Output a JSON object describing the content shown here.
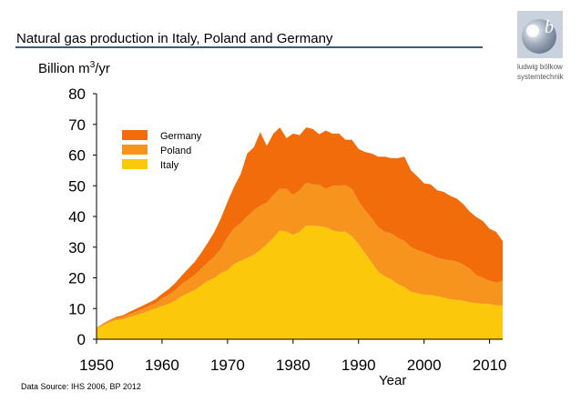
{
  "title": "Natural gas production in Italy, Poland and Germany",
  "source_note": "Data Source: IHS 2006, BP 2012",
  "logo": {
    "line1": "ludwig bölkow",
    "line2": "systemtechnik",
    "icon": "lbst-logo-icon"
  },
  "colors": {
    "Germany": "#f26c0c",
    "Poland": "#f7941d",
    "Italy": "#fcc80a",
    "title_rule": "#3f5a78"
  },
  "chart_data": {
    "type": "area",
    "stacked": true,
    "xlabel": "Year",
    "ylabel_prefix": "Billion m",
    "ylabel_sup": "3",
    "ylabel_suffix": "/yr",
    "xlim": [
      1950,
      2012
    ],
    "ylim": [
      0,
      80
    ],
    "x_ticks": [
      1950,
      1960,
      1970,
      1980,
      1990,
      2000,
      2010
    ],
    "y_ticks": [
      0,
      10,
      20,
      30,
      40,
      50,
      60,
      70,
      80
    ],
    "legend_position": "top-center",
    "x": [
      1950,
      1951,
      1952,
      1953,
      1954,
      1955,
      1956,
      1957,
      1958,
      1959,
      1960,
      1961,
      1962,
      1963,
      1964,
      1965,
      1966,
      1967,
      1968,
      1969,
      1970,
      1971,
      1972,
      1973,
      1974,
      1975,
      1976,
      1977,
      1978,
      1979,
      1980,
      1981,
      1982,
      1983,
      1984,
      1985,
      1986,
      1987,
      1988,
      1989,
      1990,
      1991,
      1992,
      1993,
      1994,
      1995,
      1996,
      1997,
      1998,
      1999,
      2000,
      2001,
      2002,
      2003,
      2004,
      2005,
      2006,
      2007,
      2008,
      2009,
      2010,
      2011,
      2012
    ],
    "series": [
      {
        "name": "Italy",
        "values": [
          3.5,
          4.5,
          5.5,
          6.2,
          6.5,
          7.2,
          7.8,
          8.5,
          9.2,
          10,
          10.8,
          11.5,
          12.5,
          14,
          15,
          16,
          17.5,
          19,
          20,
          21.5,
          22.5,
          24.5,
          25.5,
          26.5,
          27.5,
          29,
          31,
          33,
          35.5,
          35,
          34,
          35,
          37,
          37,
          36.8,
          36.5,
          35.5,
          35,
          35,
          33.5,
          31,
          28,
          25,
          22,
          20.5,
          19.5,
          18,
          17,
          15.5,
          15,
          14.5,
          14.5,
          14,
          13.5,
          13,
          12.8,
          12.5,
          12,
          11.8,
          11.5,
          11.5,
          11,
          11
        ]
      },
      {
        "name": "Poland",
        "values": [
          0.3,
          0.4,
          0.5,
          0.7,
          0.8,
          1,
          1.2,
          1.4,
          1.6,
          1.8,
          2.5,
          3,
          3.5,
          4,
          4.5,
          5,
          5.5,
          6,
          7,
          8,
          10.8,
          11.7,
          12.3,
          13.5,
          14.5,
          14.5,
          13.5,
          14,
          13.5,
          14,
          13,
          13.5,
          14,
          13.5,
          13.5,
          12.5,
          14.5,
          15,
          15.2,
          15.5,
          14,
          14,
          14.5,
          14.5,
          14.5,
          15,
          15,
          15,
          14.5,
          14,
          13.8,
          13,
          12.5,
          12.5,
          12.7,
          12.5,
          11.8,
          11,
          9,
          8.5,
          7.5,
          7.5,
          8
        ]
      },
      {
        "name": "Germany",
        "values": [
          0,
          0.2,
          0.3,
          0.4,
          0.5,
          0.7,
          0.9,
          1,
          1.1,
          1.2,
          1.5,
          1.8,
          2.3,
          2.7,
          3.5,
          4.2,
          5.2,
          6.5,
          8,
          10,
          11.5,
          13.5,
          16,
          20.5,
          20.5,
          24,
          18.5,
          20,
          20,
          16.5,
          20,
          18,
          18,
          18,
          16.5,
          19,
          17,
          17,
          14.8,
          16,
          17,
          19,
          21,
          23,
          24.5,
          24.5,
          26,
          27.5,
          25,
          24,
          22.5,
          23,
          22,
          22,
          21,
          20.5,
          19.7,
          18.5,
          19,
          18.5,
          17,
          16.5,
          13
        ]
      }
    ]
  }
}
